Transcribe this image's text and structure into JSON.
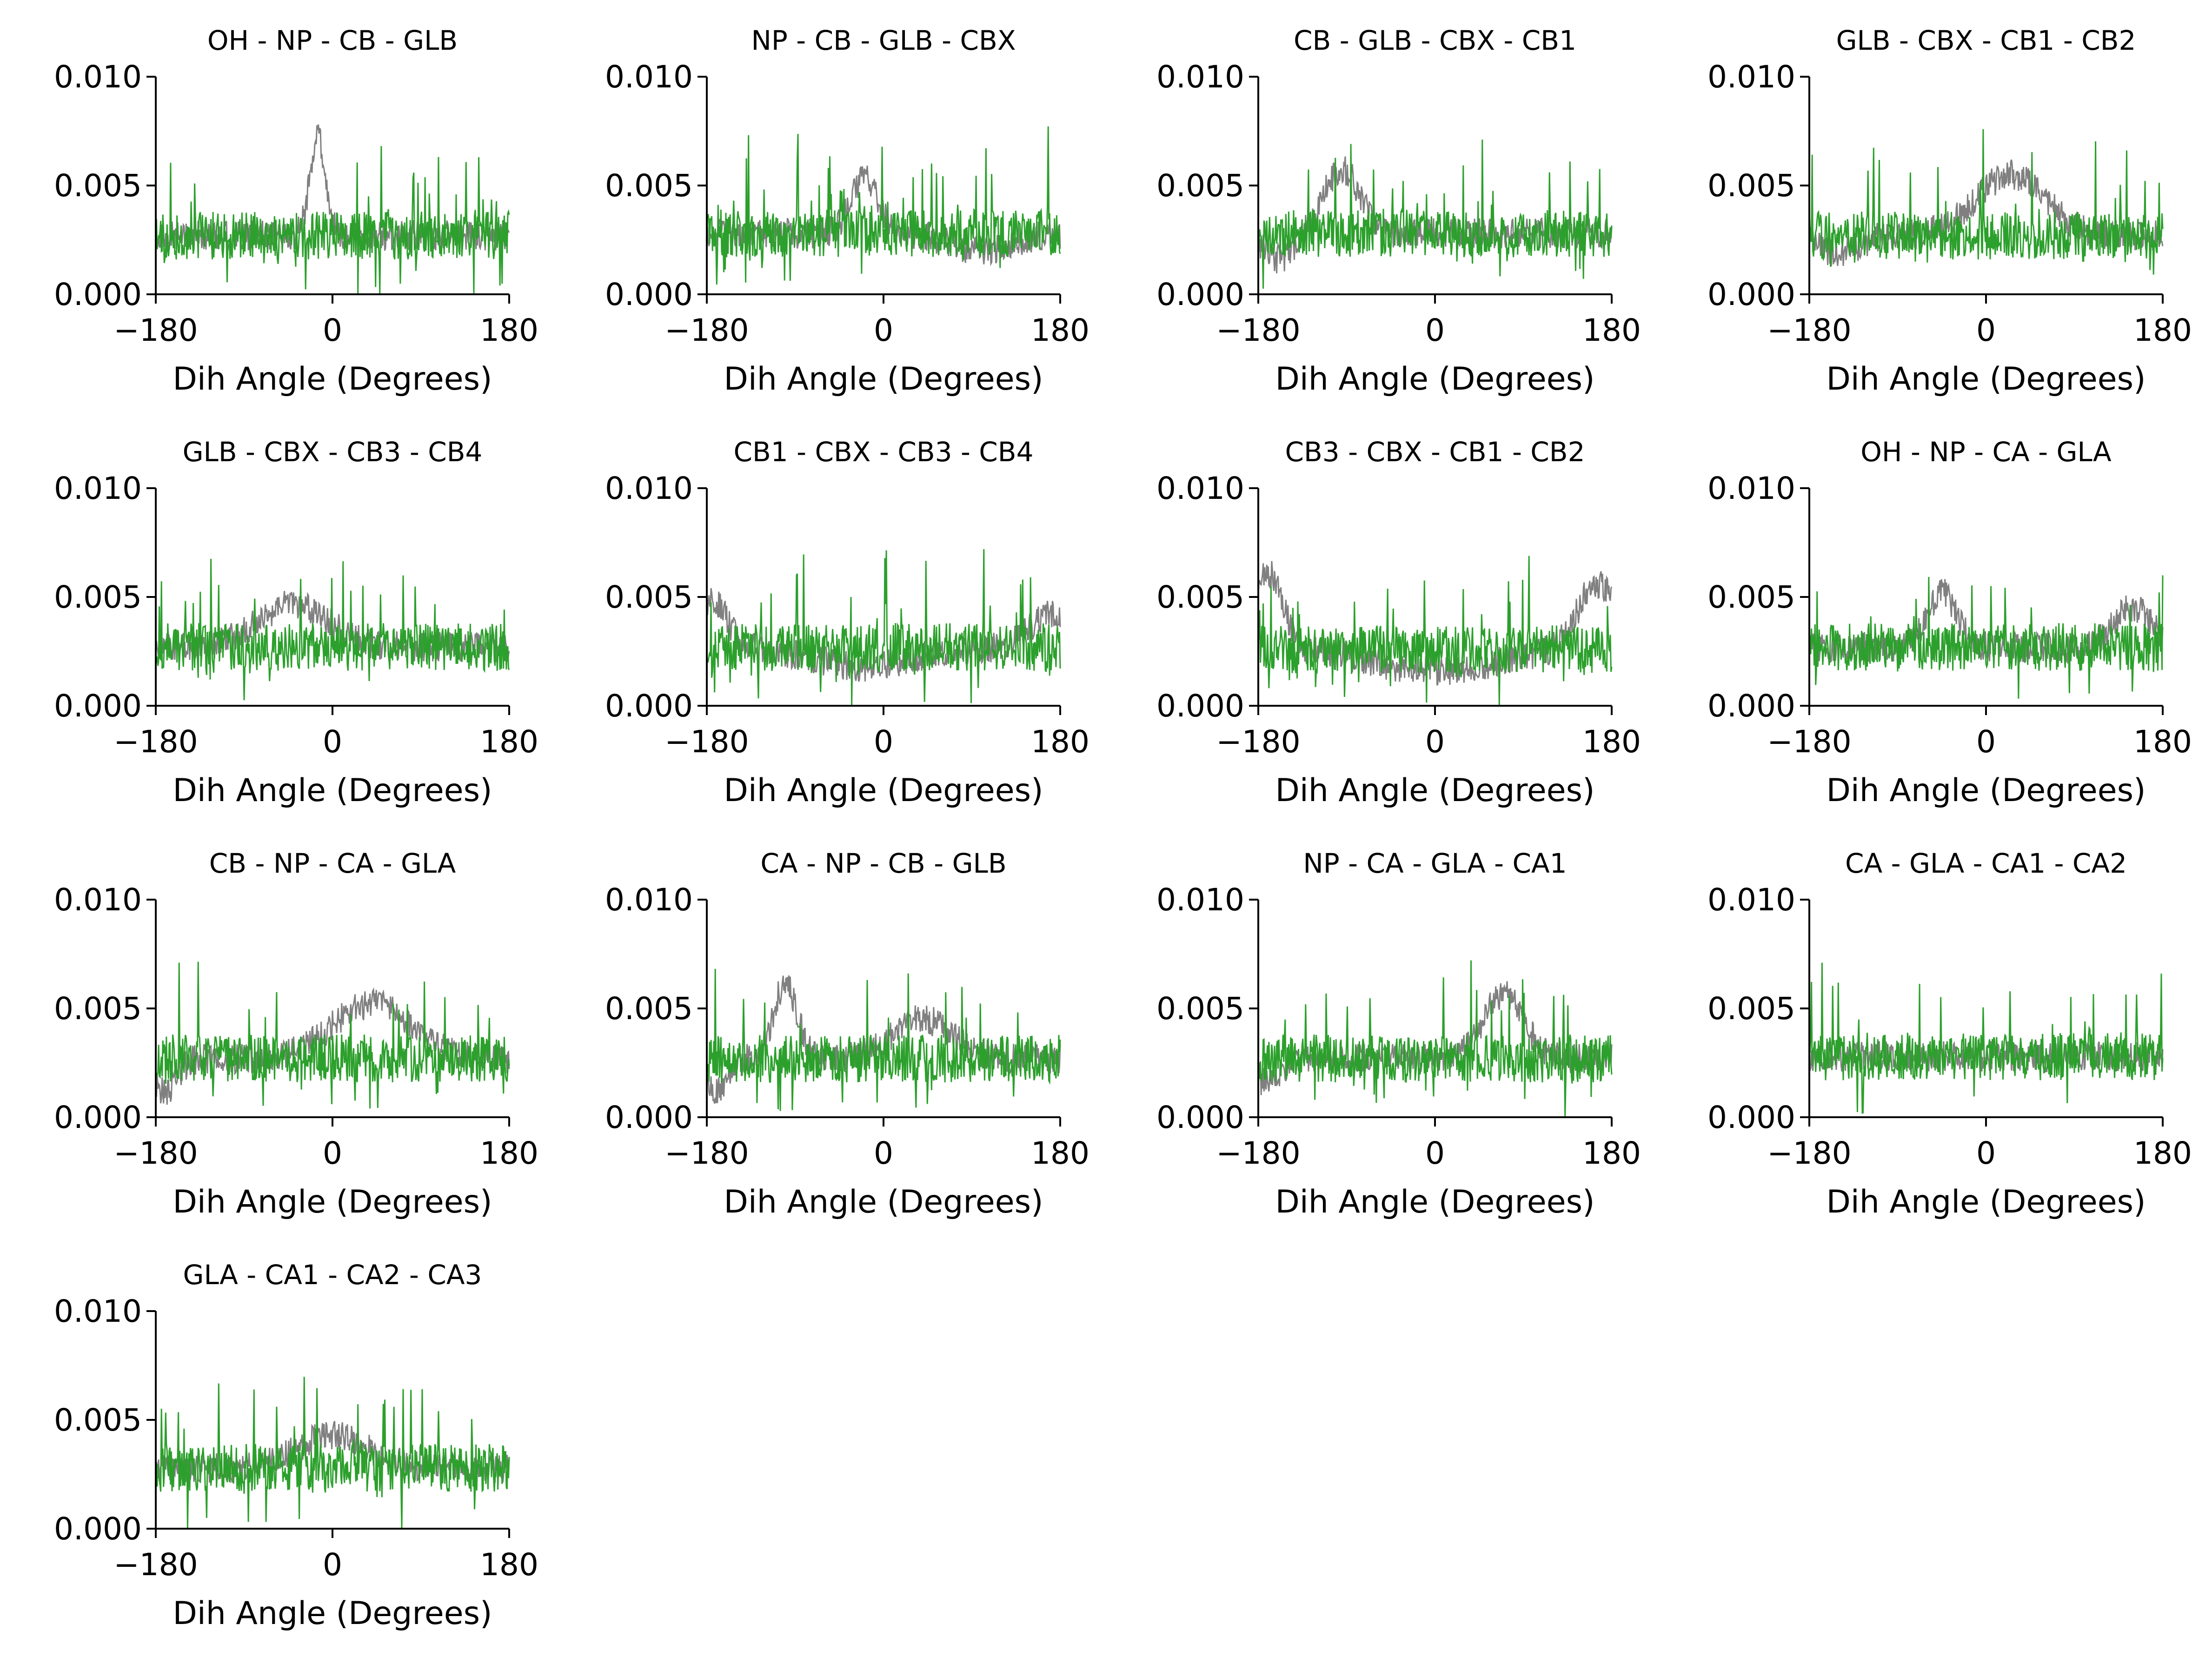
{
  "figure": {
    "layout": {
      "rows": 4,
      "cols": 4
    },
    "series_colors": {
      "reference": "#808080",
      "model": "#2ca02c"
    }
  },
  "chart_data": [
    {
      "type": "line",
      "title": "OH - NP - CB - GLB",
      "xlabel": "Dih Angle (Degrees)",
      "ylabel": "",
      "xlim": [
        -180,
        180
      ],
      "ylim": [
        0,
        0.01
      ],
      "xticks": [
        "−180",
        "0",
        "180"
      ],
      "yticks": [
        "0.000",
        "0.005",
        "0.010"
      ],
      "grid": false,
      "baseline": 0.0027,
      "features": [
        {
          "c": -15,
          "w": 8,
          "a": 0.0045
        }
      ],
      "spread_ref": 0.0007,
      "spread_model": 0.0011,
      "seed": 11,
      "series": [
        {
          "name": "",
          "color": "#808080"
        },
        {
          "name": "",
          "color": "#2ca02c"
        }
      ]
    },
    {
      "type": "line",
      "title": "NP - CB - GLB - CBX",
      "xlabel": "Dih Angle (Degrees)",
      "ylabel": "",
      "xlim": [
        -180,
        180
      ],
      "ylim": [
        0,
        0.01
      ],
      "xticks": [
        "−180",
        "0",
        "180"
      ],
      "yticks": [
        "0.000",
        "0.005",
        "0.010"
      ],
      "grid": false,
      "baseline": 0.0028,
      "features": [
        {
          "c": -20,
          "w": 14,
          "a": 0.0025
        },
        {
          "c": 100,
          "w": 30,
          "a": -0.0008
        }
      ],
      "spread_ref": 0.0007,
      "spread_model": 0.0011,
      "seed": 23,
      "series": [
        {
          "name": "",
          "color": "#808080"
        },
        {
          "name": "",
          "color": "#2ca02c"
        }
      ]
    },
    {
      "type": "line",
      "title": "CB - GLB - CBX - CB1",
      "xlabel": "Dih Angle (Degrees)",
      "ylabel": "",
      "xlim": [
        -180,
        180
      ],
      "ylim": [
        0,
        0.01
      ],
      "xticks": [
        "−180",
        "0",
        "180"
      ],
      "yticks": [
        "0.000",
        "0.005",
        "0.010"
      ],
      "grid": false,
      "baseline": 0.0028,
      "features": [
        {
          "c": -95,
          "w": 18,
          "a": 0.003
        },
        {
          "c": -160,
          "w": 15,
          "a": -0.0012
        }
      ],
      "spread_ref": 0.0007,
      "spread_model": 0.0011,
      "seed": 37,
      "series": [
        {
          "name": "",
          "color": "#808080"
        },
        {
          "name": "",
          "color": "#2ca02c"
        }
      ]
    },
    {
      "type": "line",
      "title": "GLB - CBX - CB1 - CB2",
      "xlabel": "Dih Angle (Degrees)",
      "ylabel": "",
      "xlim": [
        -180,
        180
      ],
      "ylim": [
        0,
        0.01
      ],
      "xticks": [
        "−180",
        "0",
        "180"
      ],
      "yticks": [
        "0.000",
        "0.005",
        "0.010"
      ],
      "grid": false,
      "baseline": 0.0027,
      "features": [
        {
          "c": 25,
          "w": 35,
          "a": 0.0028
        },
        {
          "c": -150,
          "w": 20,
          "a": -0.0008
        }
      ],
      "spread_ref": 0.0007,
      "spread_model": 0.0011,
      "seed": 41,
      "series": [
        {
          "name": "",
          "color": "#808080"
        },
        {
          "name": "",
          "color": "#2ca02c"
        }
      ]
    },
    {
      "type": "line",
      "title": "GLB - CBX - CB3 - CB4",
      "xlabel": "Dih Angle (Degrees)",
      "ylabel": "",
      "xlim": [
        -180,
        180
      ],
      "ylim": [
        0,
        0.01
      ],
      "xticks": [
        "−180",
        "0",
        "180"
      ],
      "yticks": [
        "0.000",
        "0.005",
        "0.010"
      ],
      "grid": false,
      "baseline": 0.0027,
      "features": [
        {
          "c": -40,
          "w": 35,
          "a": 0.002
        }
      ],
      "spread_ref": 0.0007,
      "spread_model": 0.0011,
      "seed": 53,
      "series": [
        {
          "name": "",
          "color": "#808080"
        },
        {
          "name": "",
          "color": "#2ca02c"
        }
      ]
    },
    {
      "type": "line",
      "title": "CB1 - CBX - CB3 - CB4",
      "xlabel": "Dih Angle (Degrees)",
      "ylabel": "",
      "xlim": [
        -180,
        180
      ],
      "ylim": [
        0,
        0.01
      ],
      "xticks": [
        "−180",
        "0",
        "180"
      ],
      "yticks": [
        "0.000",
        "0.005",
        "0.010"
      ],
      "grid": false,
      "baseline": 0.0027,
      "features": [
        {
          "c": -175,
          "w": 15,
          "a": 0.0022
        },
        {
          "c": 170,
          "w": 20,
          "a": 0.0015
        },
        {
          "c": -20,
          "w": 50,
          "a": -0.0009
        }
      ],
      "spread_ref": 0.0007,
      "spread_model": 0.0011,
      "seed": 67,
      "series": [
        {
          "name": "",
          "color": "#808080"
        },
        {
          "name": "",
          "color": "#2ca02c"
        }
      ]
    },
    {
      "type": "line",
      "title": "CB3 - CBX - CB1 - CB2",
      "xlabel": "Dih Angle (Degrees)",
      "ylabel": "",
      "xlim": [
        -180,
        180
      ],
      "ylim": [
        0,
        0.01
      ],
      "xticks": [
        "−180",
        "0",
        "180"
      ],
      "yticks": [
        "0.000",
        "0.005",
        "0.010"
      ],
      "grid": false,
      "baseline": 0.0026,
      "features": [
        {
          "c": -170,
          "w": 15,
          "a": 0.0035
        },
        {
          "c": 165,
          "w": 20,
          "a": 0.003
        },
        {
          "c": 0,
          "w": 60,
          "a": -0.001
        }
      ],
      "spread_ref": 0.0007,
      "spread_model": 0.0011,
      "seed": 71,
      "series": [
        {
          "name": "",
          "color": "#808080"
        },
        {
          "name": "",
          "color": "#2ca02c"
        }
      ]
    },
    {
      "type": "line",
      "title": "OH - NP - CA - GLA",
      "xlabel": "Dih Angle (Degrees)",
      "ylabel": "",
      "xlim": [
        -180,
        180
      ],
      "ylim": [
        0,
        0.01
      ],
      "xticks": [
        "−180",
        "0",
        "180"
      ],
      "yticks": [
        "0.000",
        "0.005",
        "0.010"
      ],
      "grid": false,
      "baseline": 0.0027,
      "features": [
        {
          "c": -45,
          "w": 15,
          "a": 0.0025
        },
        {
          "c": 150,
          "w": 20,
          "a": 0.0018
        }
      ],
      "spread_ref": 0.0007,
      "spread_model": 0.0011,
      "seed": 83,
      "series": [
        {
          "name": "",
          "color": "#808080"
        },
        {
          "name": "",
          "color": "#2ca02c"
        }
      ]
    },
    {
      "type": "line",
      "title": "CB - NP - CA - GLA",
      "xlabel": "Dih Angle (Degrees)",
      "ylabel": "",
      "xlim": [
        -180,
        180
      ],
      "ylim": [
        0,
        0.01
      ],
      "xticks": [
        "−180",
        "0",
        "180"
      ],
      "yticks": [
        "0.000",
        "0.005",
        "0.010"
      ],
      "grid": false,
      "baseline": 0.0027,
      "features": [
        {
          "c": 40,
          "w": 40,
          "a": 0.0025
        },
        {
          "c": -170,
          "w": 12,
          "a": -0.0015
        }
      ],
      "spread_ref": 0.0007,
      "spread_model": 0.0011,
      "seed": 97,
      "series": [
        {
          "name": "",
          "color": "#808080"
        },
        {
          "name": "",
          "color": "#2ca02c"
        }
      ]
    },
    {
      "type": "line",
      "title": "CA - NP - CB - GLB",
      "xlabel": "Dih Angle (Degrees)",
      "ylabel": "",
      "xlim": [
        -180,
        180
      ],
      "ylim": [
        0,
        0.01
      ],
      "xticks": [
        "−180",
        "0",
        "180"
      ],
      "yticks": [
        "0.000",
        "0.005",
        "0.010"
      ],
      "grid": false,
      "baseline": 0.0027,
      "features": [
        {
          "c": -100,
          "w": 12,
          "a": 0.0035
        },
        {
          "c": 40,
          "w": 30,
          "a": 0.0018
        },
        {
          "c": -170,
          "w": 12,
          "a": -0.0015
        }
      ],
      "spread_ref": 0.0007,
      "spread_model": 0.0011,
      "seed": 101,
      "series": [
        {
          "name": "",
          "color": "#808080"
        },
        {
          "name": "",
          "color": "#2ca02c"
        }
      ]
    },
    {
      "type": "line",
      "title": "NP - CA - GLA - CA1",
      "xlabel": "Dih Angle (Degrees)",
      "ylabel": "",
      "xlim": [
        -180,
        180
      ],
      "ylim": [
        0,
        0.01
      ],
      "xticks": [
        "−180",
        "0",
        "180"
      ],
      "yticks": [
        "0.000",
        "0.005",
        "0.010"
      ],
      "grid": false,
      "baseline": 0.0027,
      "features": [
        {
          "c": 70,
          "w": 20,
          "a": 0.003
        },
        {
          "c": -170,
          "w": 12,
          "a": -0.0012
        }
      ],
      "spread_ref": 0.0007,
      "spread_model": 0.0011,
      "seed": 113,
      "series": [
        {
          "name": "",
          "color": "#808080"
        },
        {
          "name": "",
          "color": "#2ca02c"
        }
      ]
    },
    {
      "type": "line",
      "title": "CA - GLA - CA1 - CA2",
      "xlabel": "Dih Angle (Degrees)",
      "ylabel": "",
      "xlim": [
        -180,
        180
      ],
      "ylim": [
        0,
        0.01
      ],
      "xticks": [
        "−180",
        "0",
        "180"
      ],
      "yticks": [
        "0.000",
        "0.005",
        "0.010"
      ],
      "grid": false,
      "baseline": 0.0028,
      "features": [],
      "spread_ref": 0.0007,
      "spread_model": 0.0011,
      "seed": 127,
      "series": [
        {
          "name": "",
          "color": "#808080"
        },
        {
          "name": "",
          "color": "#2ca02c"
        }
      ]
    },
    {
      "type": "line",
      "title": "GLA - CA1 - CA2 - CA3",
      "xlabel": "Dih Angle (Degrees)",
      "ylabel": "",
      "xlim": [
        -180,
        180
      ],
      "ylim": [
        0,
        0.01
      ],
      "xticks": [
        "−180",
        "0",
        "180"
      ],
      "yticks": [
        "0.000",
        "0.005",
        "0.010"
      ],
      "grid": false,
      "baseline": 0.0028,
      "features": [
        {
          "c": 0,
          "w": 35,
          "a": 0.0015
        }
      ],
      "spread_ref": 0.0007,
      "spread_model": 0.0011,
      "seed": 131,
      "series": [
        {
          "name": "",
          "color": "#808080"
        },
        {
          "name": "",
          "color": "#2ca02c"
        }
      ]
    }
  ]
}
